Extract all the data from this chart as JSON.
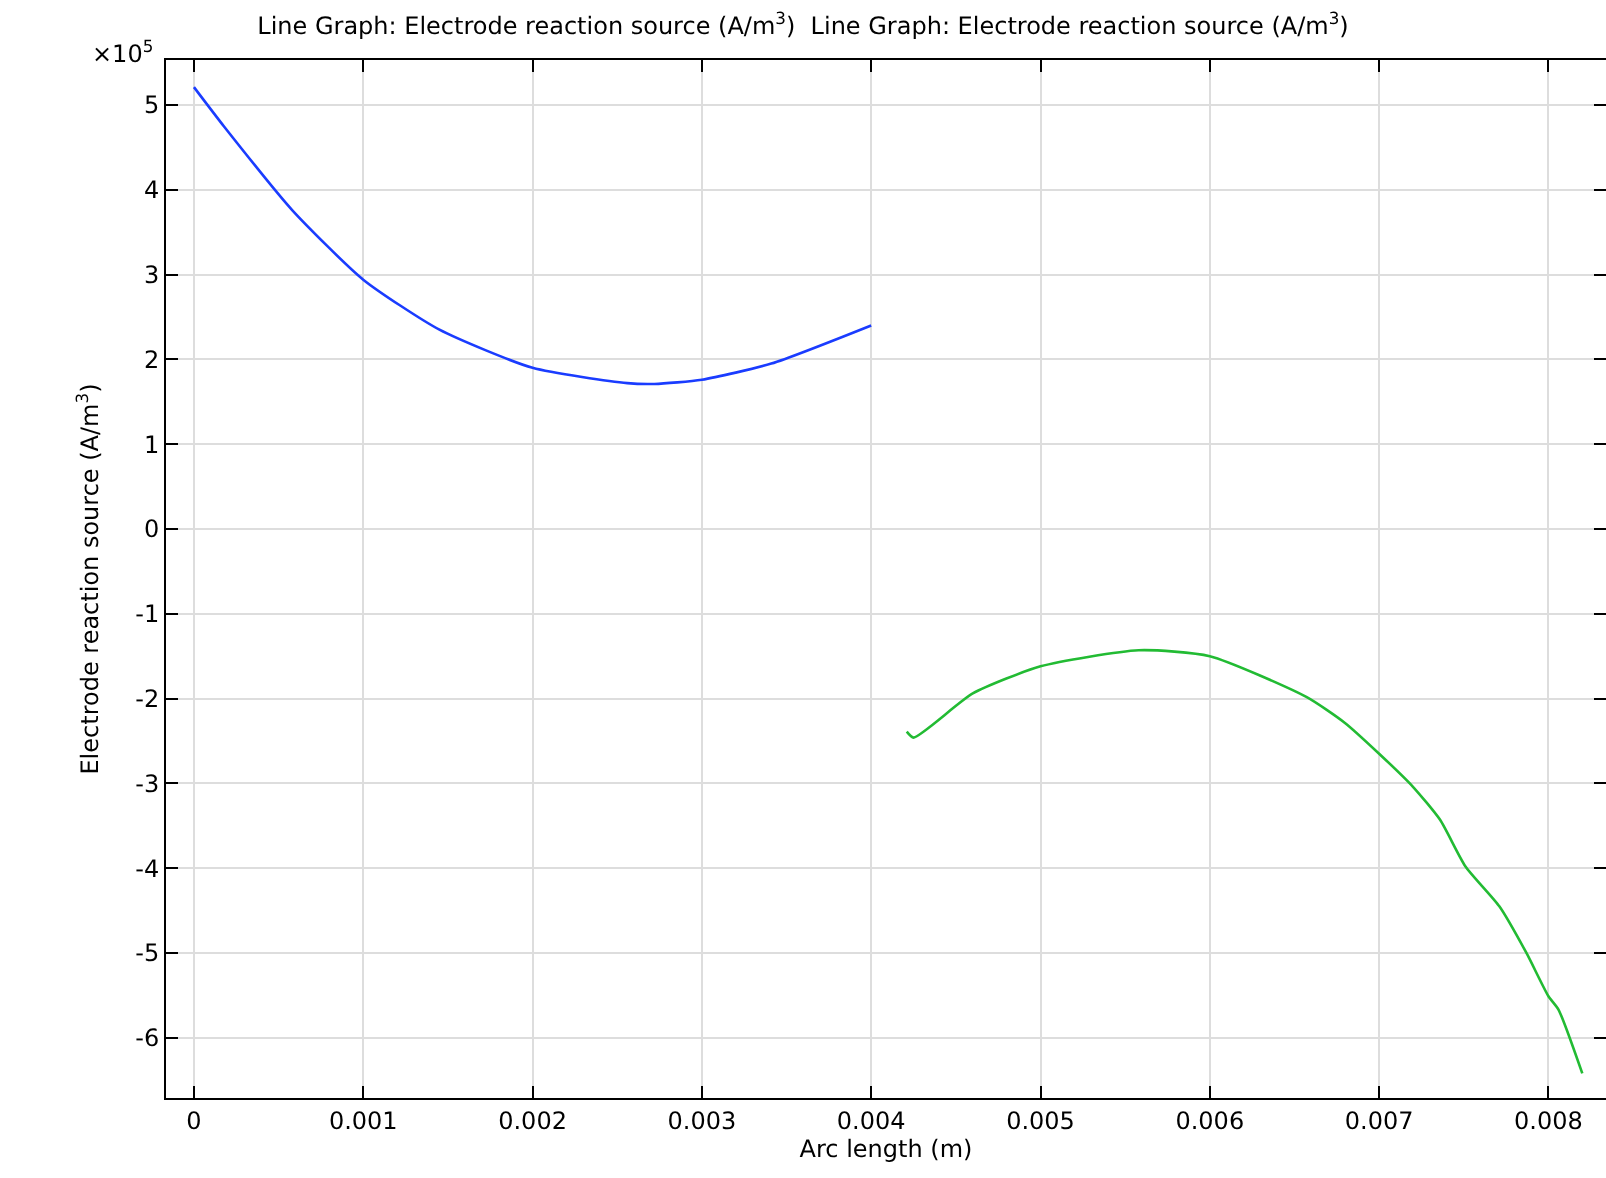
{
  "chart_data": {
    "type": "line",
    "title": "Line Graph: Electrode reaction source (A/m$^{3}$)  Line Graph: Electrode reaction source (A/m$^{3}$)",
    "xlabel": "Arc length (m)",
    "ylabel": "Electrode reaction source (A/m$^{3}$)",
    "annotations": [
      "×10$^{5}$"
    ],
    "series": [
      {
        "color": "#1a3cff",
        "x": [
          0,
          0.00018,
          0.00058,
          0.001,
          0.00145,
          0.002,
          0.00256,
          0.00272,
          0.003,
          0.00341,
          0.004
        ],
        "values": [
          5.21,
          4.74,
          3.76,
          2.94,
          2.35,
          1.9,
          1.72,
          1.71,
          1.76,
          1.95,
          2.4
        ]
      },
      {
        "color": "#22bb33",
        "x": [
          0.00421,
          0.00425,
          0.0046,
          0.005,
          0.00558,
          0.006,
          0.00657,
          0.0068,
          0.007,
          0.0072,
          0.00736,
          0.00751,
          0.00771,
          0.00787,
          0.008,
          0.00806,
          0.0082
        ],
        "values": [
          -2.39,
          -2.46,
          -1.94,
          -1.62,
          -1.43,
          -1.5,
          -1.98,
          -2.29,
          -2.65,
          -3.04,
          -3.43,
          -3.98,
          -4.45,
          -5.0,
          -5.51,
          -5.67,
          -6.42
        ]
      }
    ],
    "xlim": [
      -0.000165,
      0.00834
    ],
    "ylim": [
      -6.71,
      5.53
    ],
    "xticks": [
      0,
      0.001,
      0.002,
      0.003,
      0.004,
      0.005,
      0.006,
      0.007,
      0.008
    ],
    "yticks": [
      5,
      4,
      3,
      2,
      1,
      0,
      -1,
      -2,
      -3,
      -4,
      -5,
      -6
    ],
    "grid": true
  }
}
